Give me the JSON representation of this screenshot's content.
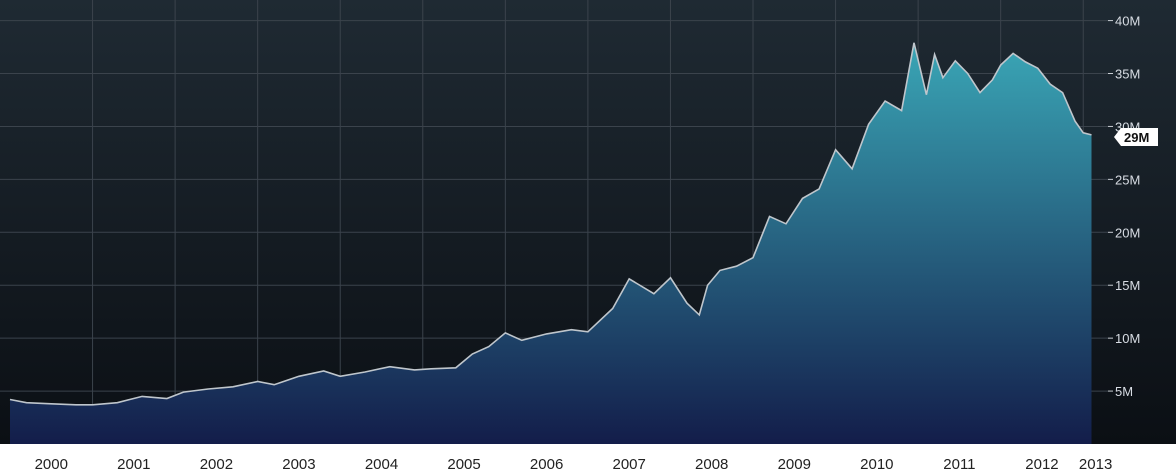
{
  "chart_data": {
    "type": "area",
    "title": "",
    "xlabel": "",
    "ylabel": "",
    "x_tick_labels": [
      "2000",
      "2001",
      "2002",
      "2003",
      "2004",
      "2005",
      "2006",
      "2007",
      "2008",
      "2009",
      "2010",
      "2011",
      "2012",
      "2013"
    ],
    "y_tick_labels": [
      "5M",
      "10M",
      "15M",
      "20M",
      "25M",
      "30M",
      "35M",
      "40M"
    ],
    "y_tick_values": [
      5,
      10,
      15,
      20,
      25,
      30,
      35,
      40
    ],
    "ylim": [
      0,
      41
    ],
    "xlim": [
      2000.0,
      2013.3
    ],
    "grid": true,
    "legend": "none",
    "current_value_label": "29M",
    "current_value": 29,
    "colors": {
      "background_top": "#1f2a33",
      "background_bottom": "#0b0f14",
      "area_top": "#3aa6b6",
      "area_bottom": "#131d4a",
      "line": "#bfc6cc",
      "grid": "#3b434c",
      "axis_strip": "#ffffff"
    },
    "series": [
      {
        "x": [
          2000.0,
          2000.2,
          2000.5,
          2000.8,
          2001.0,
          2001.3,
          2001.6,
          2001.9,
          2002.1,
          2002.4,
          2002.7,
          2003.0,
          2003.2,
          2003.5,
          2003.8,
          2004.0,
          2004.3,
          2004.6,
          2004.9,
          2005.1,
          2005.4,
          2005.6,
          2005.8,
          2006.0,
          2006.2,
          2006.5,
          2006.8,
          2007.0,
          2007.3,
          2007.5,
          2007.8,
          2008.0,
          2008.2,
          2008.35,
          2008.45,
          2008.6,
          2008.8,
          2009.0,
          2009.2,
          2009.4,
          2009.6,
          2009.8,
          2010.0,
          2010.2,
          2010.4,
          2010.6,
          2010.8,
          2010.95,
          2011.1,
          2011.2,
          2011.3,
          2011.45,
          2011.6,
          2011.75,
          2011.9,
          2012.0,
          2012.15,
          2012.3,
          2012.45,
          2012.6,
          2012.75,
          2012.9,
          2013.0,
          2013.1
        ],
        "values": [
          4.2,
          3.9,
          3.8,
          3.7,
          3.7,
          3.9,
          4.5,
          4.3,
          4.9,
          5.2,
          5.4,
          5.9,
          5.6,
          6.4,
          6.9,
          6.4,
          6.8,
          7.3,
          7.0,
          7.1,
          7.2,
          8.5,
          9.2,
          10.5,
          9.8,
          10.4,
          10.8,
          10.6,
          12.8,
          15.6,
          14.2,
          15.7,
          13.3,
          12.2,
          15.0,
          16.4,
          16.8,
          17.6,
          21.5,
          20.8,
          23.2,
          24.1,
          27.8,
          26.0,
          30.2,
          32.4,
          31.5,
          37.9,
          33.0,
          36.8,
          34.6,
          36.2,
          35.0,
          33.2,
          34.4,
          35.8,
          36.9,
          36.1,
          35.5,
          34.0,
          33.2,
          30.5,
          29.4,
          29.2
        ]
      }
    ]
  }
}
